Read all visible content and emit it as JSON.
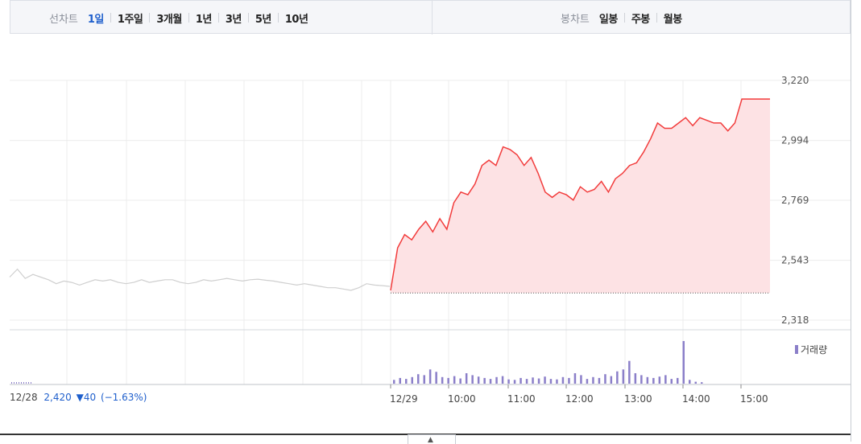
{
  "toolbar": {
    "line_caption": "선차트",
    "periods": [
      "1일",
      "1주일",
      "3개월",
      "1년",
      "3년",
      "5년",
      "10년"
    ],
    "active_period": "1일",
    "candle_caption": "봉차트",
    "candles": [
      "일봉",
      "주봉",
      "월봉"
    ]
  },
  "prev_close": {
    "date": "12/28",
    "price": "2,420",
    "change": "▼40",
    "pct": "(−1.63%)"
  },
  "volume_legend": "거래량",
  "expand_icon": "chevron-up-icon",
  "colors": {
    "up": "#f23c3c",
    "up_fill": "#fde2e4",
    "prev_day": "#cfcfcf",
    "volume": "#8b7fc9",
    "grid": "#ececec",
    "accent": "#1f5fcc"
  },
  "chart_data": {
    "type": "line",
    "y_ticks": [
      "3,220",
      "2,994",
      "2,769",
      "2,543",
      "2,318"
    ],
    "ylim": [
      2318,
      3220
    ],
    "baseline": 2420,
    "x_ticks": [
      "12/29",
      "10:00",
      "11:00",
      "12:00",
      "13:00",
      "14:00",
      "15:00"
    ],
    "prev_day_x_label": "12/28",
    "grid": true,
    "series": [
      {
        "values": [
          2480,
          2510,
          2475,
          2490,
          2480,
          2470,
          2455,
          2465,
          2460,
          2450,
          2460,
          2470,
          2465,
          2470,
          2460,
          2455,
          2460,
          2470,
          2460,
          2465,
          2470,
          2470,
          2460,
          2455,
          2460,
          2470,
          2465,
          2470,
          2475,
          2470,
          2465,
          2470,
          2472,
          2468,
          2465,
          2460,
          2455,
          2450,
          2455,
          2450,
          2445,
          2440,
          2440,
          2435,
          2430,
          2440,
          2455,
          2450,
          2448,
          2445
        ]
      },
      {
        "values": [
          2430,
          2590,
          2640,
          2620,
          2660,
          2690,
          2650,
          2700,
          2660,
          2760,
          2800,
          2790,
          2830,
          2900,
          2920,
          2900,
          2970,
          2960,
          2940,
          2900,
          2930,
          2870,
          2800,
          2780,
          2800,
          2790,
          2770,
          2820,
          2800,
          2810,
          2840,
          2800,
          2850,
          2870,
          2900,
          2910,
          2950,
          3000,
          3060,
          3040,
          3040,
          3060,
          3080,
          3050,
          3080,
          3070,
          3060,
          3060,
          3030,
          3060,
          3150,
          3150,
          3150,
          3150,
          3150
        ]
      }
    ],
    "volume": [
      8,
      12,
      10,
      14,
      20,
      18,
      30,
      25,
      14,
      12,
      16,
      11,
      22,
      18,
      15,
      12,
      10,
      14,
      16,
      9,
      8,
      12,
      10,
      13,
      11,
      15,
      10,
      9,
      14,
      12,
      22,
      18,
      10,
      14,
      12,
      20,
      16,
      26,
      30,
      48,
      22,
      18,
      14,
      12,
      15,
      18,
      10,
      12,
      90,
      8,
      4,
      3
    ]
  }
}
